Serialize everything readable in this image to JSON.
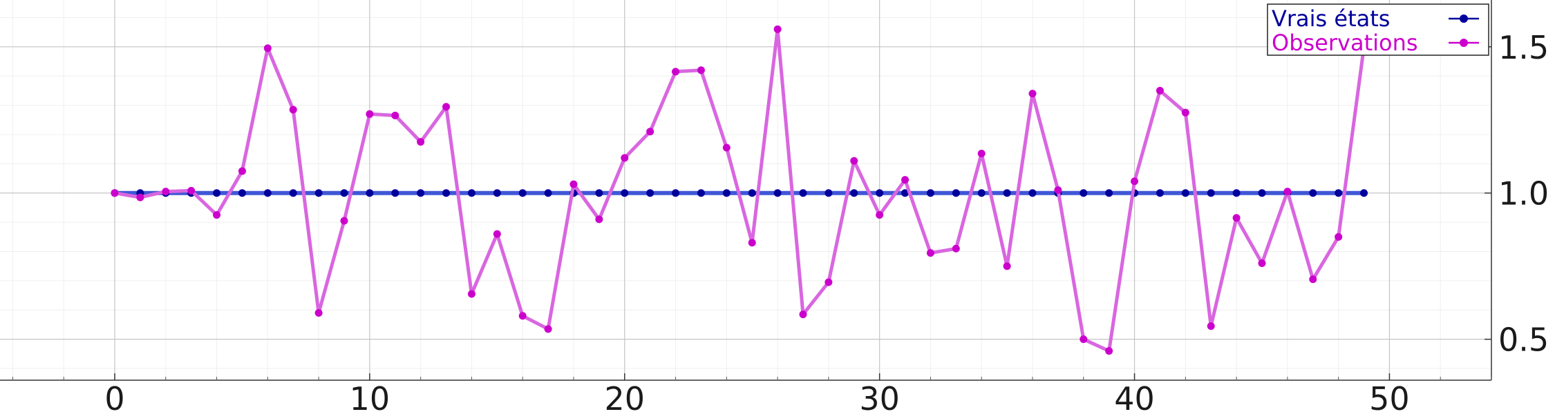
{
  "chart_data": {
    "type": "line",
    "title": "",
    "xlabel": "",
    "ylabel": "",
    "xlim": [
      -4.5,
      54
    ],
    "ylim": [
      0.36,
      1.66
    ],
    "grid": true,
    "y_axis_side": "right",
    "x_ticks": [
      "0",
      "10",
      "20",
      "30",
      "40",
      "50"
    ],
    "y_ticks": [
      "0.5",
      "1.0",
      "1.5"
    ],
    "legend_position": "top-right",
    "series": [
      {
        "name": "Vrais états",
        "color": "#00009b",
        "line_color": "#3f57d6",
        "x": [
          0,
          1,
          2,
          3,
          4,
          5,
          6,
          7,
          8,
          9,
          10,
          11,
          12,
          13,
          14,
          15,
          16,
          17,
          18,
          19,
          20,
          21,
          22,
          23,
          24,
          25,
          26,
          27,
          28,
          29,
          30,
          31,
          32,
          33,
          34,
          35,
          36,
          37,
          38,
          39,
          40,
          41,
          42,
          43,
          44,
          45,
          46,
          47,
          48,
          49
        ],
        "y": [
          1,
          1,
          1,
          1,
          1,
          1,
          1,
          1,
          1,
          1,
          1,
          1,
          1,
          1,
          1,
          1,
          1,
          1,
          1,
          1,
          1,
          1,
          1,
          1,
          1,
          1,
          1,
          1,
          1,
          1,
          1,
          1,
          1,
          1,
          1,
          1,
          1,
          1,
          1,
          1,
          1,
          1,
          1,
          1,
          1,
          1,
          1,
          1,
          1,
          1
        ]
      },
      {
        "name": "Observations",
        "color": "#cc00cc",
        "line_color": "#d966e0",
        "x": [
          0,
          1,
          2,
          3,
          4,
          5,
          6,
          7,
          8,
          9,
          10,
          11,
          12,
          13,
          14,
          15,
          16,
          17,
          18,
          19,
          20,
          21,
          22,
          23,
          24,
          25,
          26,
          27,
          28,
          29,
          30,
          31,
          32,
          33,
          34,
          35,
          36,
          37,
          38,
          39,
          40,
          41,
          42,
          43,
          44,
          45,
          46,
          47,
          48,
          49
        ],
        "y": [
          1.0,
          0.985,
          1.005,
          1.008,
          0.925,
          1.075,
          1.495,
          1.285,
          0.59,
          0.905,
          1.27,
          1.265,
          1.175,
          1.295,
          0.655,
          0.86,
          0.58,
          0.535,
          1.03,
          0.91,
          1.12,
          1.21,
          1.415,
          1.42,
          1.155,
          0.83,
          1.56,
          0.585,
          0.695,
          1.11,
          0.925,
          1.045,
          0.795,
          0.81,
          1.135,
          0.75,
          1.34,
          1.01,
          0.5,
          0.46,
          1.04,
          1.35,
          1.275,
          0.545,
          0.915,
          0.76,
          1.005,
          0.705,
          0.85,
          1.5
        ]
      }
    ]
  }
}
